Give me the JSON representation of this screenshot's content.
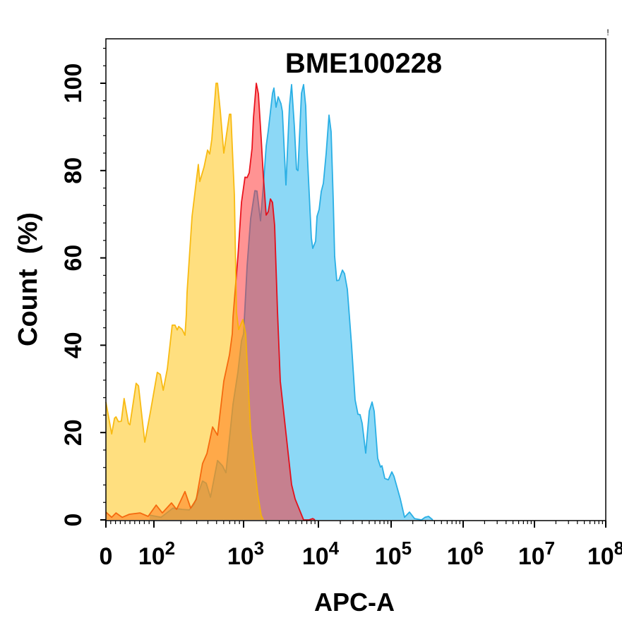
{
  "chart_data": {
    "type": "area",
    "title": "BME100228",
    "corner_mark": "!",
    "xlabel": "APC-A",
    "ylabel": "Count  (%)",
    "x_scale": "logicle",
    "xlim": [
      0,
      100000000
    ],
    "ylim": [
      0,
      100
    ],
    "x_ticks": [
      {
        "base": "0",
        "exp": ""
      },
      {
        "base": "10",
        "exp": "2"
      },
      {
        "base": "10",
        "exp": "3"
      },
      {
        "base": "10",
        "exp": "4"
      },
      {
        "base": "10",
        "exp": "5"
      },
      {
        "base": "10",
        "exp": "6"
      },
      {
        "base": "10",
        "exp": "7"
      },
      {
        "base": "10",
        "exp": "8"
      }
    ],
    "y_ticks": [
      "0",
      "20",
      "40",
      "60",
      "80",
      "100"
    ],
    "grid": false,
    "legend": "none",
    "series": [
      {
        "color": "#1aa9e2",
        "fill": "#1ab2ee",
        "points": [
          [
            91,
            1.1
          ],
          [
            120,
            0.6
          ],
          [
            163,
            2.7
          ],
          [
            207,
            2.4
          ],
          [
            248,
            2.3
          ],
          [
            281,
            3.6
          ],
          [
            349,
            8.9
          ],
          [
            383,
            8.4
          ],
          [
            427,
            5.2
          ],
          [
            512,
            13.6
          ],
          [
            581,
            12.4
          ],
          [
            636,
            10.8
          ],
          [
            762,
            26.5
          ],
          [
            865,
            33.9
          ],
          [
            947,
            41
          ],
          [
            1000,
            42.6
          ],
          [
            1115,
            58.2
          ],
          [
            1242,
            69
          ],
          [
            1416,
            75.4
          ],
          [
            1511,
            75.3
          ],
          [
            1684,
            68.5
          ],
          [
            1837,
            76.6
          ],
          [
            2004,
            85.6
          ],
          [
            2138,
            89.2
          ],
          [
            2436,
            97.7
          ],
          [
            2545,
            98.9
          ],
          [
            2716,
            94.5
          ],
          [
            2899,
            96.9
          ],
          [
            3162,
            95.3
          ],
          [
            3304,
            93.5
          ],
          [
            3681,
            76.7
          ],
          [
            4105,
            94.8
          ],
          [
            4385,
            99.7
          ],
          [
            4775,
            90
          ],
          [
            5100,
            80.3
          ],
          [
            5325,
            80
          ],
          [
            5940,
            97.7
          ],
          [
            6340,
            99.7
          ],
          [
            6761,
            94.8
          ],
          [
            7063,
            84.7
          ],
          [
            8047,
            64.6
          ],
          [
            8406,
            62.2
          ],
          [
            9165,
            63.8
          ],
          [
            9573,
            69.5
          ],
          [
            10225,
            71.1
          ],
          [
            10935,
            75.2
          ],
          [
            11695,
            77.1
          ],
          [
            12790,
            84
          ],
          [
            13990,
            92.7
          ],
          [
            14955,
            88.9
          ],
          [
            15990,
            73.3
          ],
          [
            16720,
            60.4
          ],
          [
            17870,
            54.8
          ],
          [
            19130,
            54.9
          ],
          [
            21380,
            57.2
          ],
          [
            22860,
            56.4
          ],
          [
            25000,
            52.8
          ],
          [
            26740,
            46.4
          ],
          [
            28590,
            39.9
          ],
          [
            31990,
            27.5
          ],
          [
            34980,
            24.2
          ],
          [
            37410,
            24.1
          ],
          [
            39990,
            22.1
          ],
          [
            44680,
            15.3
          ],
          [
            50010,
            24.9
          ],
          [
            54710,
            27
          ],
          [
            58480,
            24.9
          ],
          [
            65460,
            14.1
          ],
          [
            71450,
            12.1
          ],
          [
            74820,
            12.4
          ],
          [
            81800,
            9.5
          ],
          [
            91420,
            9.2
          ],
          [
            102300,
            11
          ],
          [
            109400,
            10
          ],
          [
            134000,
            4.8
          ],
          [
            153500,
            0.6
          ],
          [
            179900,
            1.8
          ],
          [
            210900,
            0.3
          ],
          [
            264000,
            0
          ],
          [
            295600,
            0.6
          ],
          [
            331200,
            0.8
          ],
          [
            378600,
            0
          ]
        ]
      },
      {
        "color": "#e8000b",
        "fill": "#ff2828",
        "points": [
          [
            0,
            1.8
          ],
          [
            12,
            0.6
          ],
          [
            21,
            1.6
          ],
          [
            34,
            0.6
          ],
          [
            49,
            1.3
          ],
          [
            71,
            1.6
          ],
          [
            88,
            0.8
          ],
          [
            106,
            3.4
          ],
          [
            124,
            1.6
          ],
          [
            157,
            3.9
          ],
          [
            179,
            2.4
          ],
          [
            222,
            6.5
          ],
          [
            257,
            2.7
          ],
          [
            297,
            4.7
          ],
          [
            349,
            12.9
          ],
          [
            390,
            15.2
          ],
          [
            451,
            21.3
          ],
          [
            512,
            19.4
          ],
          [
            602,
            31.8
          ],
          [
            696,
            37.8
          ],
          [
            748,
            42.6
          ],
          [
            762,
            46.4
          ],
          [
            865,
            60.4
          ],
          [
            947,
            72.7
          ],
          [
            1044,
            78.5
          ],
          [
            1115,
            78.4
          ],
          [
            1189,
            79.5
          ],
          [
            1297,
            85.1
          ],
          [
            1356,
            92.1
          ],
          [
            1479,
            100
          ],
          [
            1578,
            97.6
          ],
          [
            1722,
            87.2
          ],
          [
            1837,
            78.7
          ],
          [
            2004,
            69.8
          ],
          [
            2138,
            70.6
          ],
          [
            2281,
            73.5
          ],
          [
            2436,
            72.7
          ],
          [
            2600,
            67.4
          ],
          [
            2837,
            48
          ],
          [
            3097,
            31.8
          ],
          [
            4385,
            8.1
          ],
          [
            4885,
            4.8
          ],
          [
            6340,
            0
          ],
          [
            7500,
            0
          ],
          [
            8406,
            0.3
          ],
          [
            9000,
            0
          ]
        ]
      },
      {
        "color": "#f7b500",
        "fill": "#ffc000",
        "points": [
          [
            0,
            27
          ],
          [
            12,
            19.7
          ],
          [
            18,
            23.3
          ],
          [
            21,
            23.6
          ],
          [
            26,
            22.5
          ],
          [
            32,
            22.6
          ],
          [
            38,
            27.8
          ],
          [
            47,
            22.1
          ],
          [
            50,
            21.8
          ],
          [
            63,
            31.3
          ],
          [
            68,
            30.7
          ],
          [
            81,
            17.8
          ],
          [
            93,
            24.9
          ],
          [
            109,
            33.8
          ],
          [
            118,
            33.3
          ],
          [
            127,
            29.7
          ],
          [
            141,
            34.6
          ],
          [
            160,
            44.6
          ],
          [
            172,
            44.6
          ],
          [
            182,
            43.5
          ],
          [
            189,
            44.3
          ],
          [
            207,
            43.6
          ],
          [
            222,
            42.3
          ],
          [
            230,
            47
          ],
          [
            234,
            52
          ],
          [
            266,
            69.5
          ],
          [
            281,
            73.5
          ],
          [
            313,
            81.4
          ],
          [
            325,
            77.5
          ],
          [
            362,
            80.8
          ],
          [
            397,
            84.7
          ],
          [
            419,
            83.8
          ],
          [
            442,
            87.2
          ],
          [
            493,
            100
          ],
          [
            512,
            100
          ],
          [
            550,
            93.7
          ],
          [
            602,
            84
          ],
          [
            696,
            92.9
          ],
          [
            721,
            92.9
          ],
          [
            790,
            74.3
          ],
          [
            834,
            47.5
          ],
          [
            881,
            43.6
          ],
          [
            982,
            45.9
          ],
          [
            1067,
            42.6
          ],
          [
            1242,
            20.5
          ],
          [
            1544,
            6
          ],
          [
            1722,
            1
          ],
          [
            1837,
            0
          ]
        ]
      }
    ]
  }
}
